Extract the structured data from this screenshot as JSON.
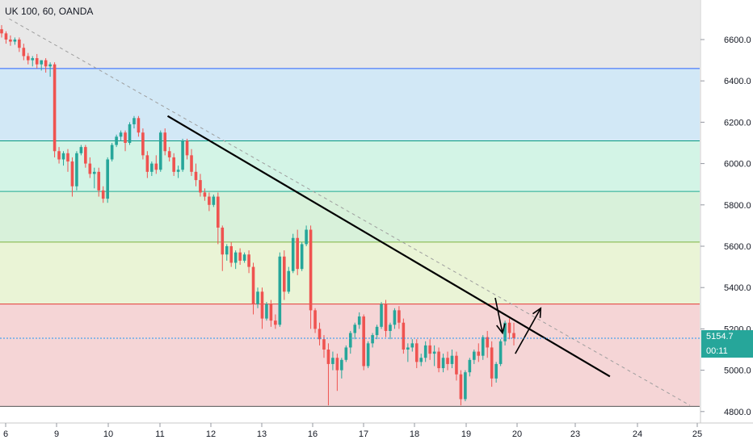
{
  "chart_data": {
    "type": "candlestick",
    "title": "UK 100, 60, OANDA",
    "y_axis": {
      "ticks": [
        "6600.0",
        "6400.0",
        "6200.0",
        "6000.0",
        "5800.0",
        "5600.0",
        "5400.0",
        "5200.0",
        "5000.0",
        "4800.0"
      ],
      "values": [
        6600,
        6400,
        6200,
        6000,
        5800,
        5600,
        5400,
        5200,
        5000,
        4800
      ],
      "ylim": [
        4780,
        6800
      ]
    },
    "x_axis": {
      "ticks": [
        "6",
        "9",
        "10",
        "11",
        "12",
        "13",
        "16",
        "17",
        "18",
        "19",
        "20",
        "23",
        "24",
        "25"
      ]
    },
    "current_price": {
      "value": 5154.7,
      "label": "5154.7",
      "countdown": "00:11"
    },
    "fib_levels": [
      {
        "level": 6460,
        "color": "#2962ff"
      },
      {
        "level": 6110,
        "color": "#089981"
      },
      {
        "level": 5865,
        "color": "#22ab94"
      },
      {
        "level": 5620,
        "color": "#7cb342"
      },
      {
        "level": 5320,
        "color": "#e53935"
      },
      {
        "level": 4825,
        "color": "#555555"
      }
    ],
    "fib_zones": [
      {
        "from": 6800,
        "to": 6460,
        "color": "#e8e8e8"
      },
      {
        "from": 6460,
        "to": 6110,
        "color": "#d2e8f6"
      },
      {
        "from": 6110,
        "to": 5865,
        "color": "#d3f4e6"
      },
      {
        "from": 5865,
        "to": 5620,
        "color": "#d8f1da"
      },
      {
        "from": 5620,
        "to": 5320,
        "color": "#eaf4d6"
      },
      {
        "from": 5320,
        "to": 4825,
        "color": "#f5d5d6"
      }
    ],
    "trendlines": [
      {
        "name": "main-trendline",
        "style": "solid",
        "color": "#000000",
        "from": [
          10.45,
          6230
        ],
        "to": [
          22.6,
          4970
        ]
      },
      {
        "name": "projected-trendline",
        "style": "dashed",
        "color": "#9e9e9e",
        "from": [
          6.1,
          6700
        ],
        "to": [
          24.8,
          4830
        ]
      }
    ],
    "arrows": [
      {
        "name": "retest-arrow",
        "from": [
          19.45,
          5350
        ],
        "to": [
          19.65,
          5180
        ]
      },
      {
        "name": "breakout-arrow",
        "from": [
          20.0,
          5080
        ],
        "to": [
          20.7,
          5300
        ]
      }
    ],
    "candles": [
      {
        "o": 6650,
        "h": 6670,
        "c": 6630,
        "l": 6610
      },
      {
        "o": 6630,
        "h": 6640,
        "c": 6600,
        "l": 6580
      },
      {
        "o": 6600,
        "h": 6620,
        "c": 6590,
        "l": 6570
      },
      {
        "o": 6590,
        "h": 6610,
        "c": 6600,
        "l": 6575
      },
      {
        "o": 6600,
        "h": 6610,
        "c": 6560,
        "l": 6540
      },
      {
        "o": 6560,
        "h": 6580,
        "c": 6520,
        "l": 6500
      },
      {
        "o": 6520,
        "h": 6535,
        "c": 6500,
        "l": 6480
      },
      {
        "o": 6500,
        "h": 6520,
        "c": 6510,
        "l": 6470
      },
      {
        "o": 6510,
        "h": 6530,
        "c": 6480,
        "l": 6460
      },
      {
        "o": 6480,
        "h": 6500,
        "c": 6500,
        "l": 6450
      },
      {
        "o": 6500,
        "h": 6510,
        "c": 6470,
        "l": 6440
      },
      {
        "o": 6470,
        "h": 6490,
        "c": 6480,
        "l": 6420
      },
      {
        "o": 6480,
        "h": 6490,
        "c": 6060,
        "l": 6030
      },
      {
        "o": 6060,
        "h": 6080,
        "c": 6020,
        "l": 6000
      },
      {
        "o": 6020,
        "h": 6060,
        "c": 6050,
        "l": 5990
      },
      {
        "o": 6050,
        "h": 6070,
        "c": 6010,
        "l": 5960
      },
      {
        "o": 6010,
        "h": 6030,
        "c": 5890,
        "l": 5840
      },
      {
        "o": 5890,
        "h": 6060,
        "c": 6050,
        "l": 5870
      },
      {
        "o": 6050,
        "h": 6090,
        "c": 6080,
        "l": 6040
      },
      {
        "o": 6080,
        "h": 6090,
        "c": 6000,
        "l": 5980
      },
      {
        "o": 6000,
        "h": 6030,
        "c": 5950,
        "l": 5930
      },
      {
        "o": 5950,
        "h": 5980,
        "c": 5960,
        "l": 5880
      },
      {
        "o": 5960,
        "h": 5980,
        "c": 5870,
        "l": 5840
      },
      {
        "o": 5870,
        "h": 5890,
        "c": 5830,
        "l": 5810
      },
      {
        "o": 5830,
        "h": 6030,
        "c": 6020,
        "l": 5810
      },
      {
        "o": 6020,
        "h": 6100,
        "c": 6090,
        "l": 6010
      },
      {
        "o": 6090,
        "h": 6140,
        "c": 6130,
        "l": 6080
      },
      {
        "o": 6130,
        "h": 6160,
        "c": 6150,
        "l": 6110
      },
      {
        "o": 6150,
        "h": 6160,
        "c": 6100,
        "l": 6060
      },
      {
        "o": 6100,
        "h": 6200,
        "c": 6190,
        "l": 6090
      },
      {
        "o": 6190,
        "h": 6230,
        "c": 6220,
        "l": 6170
      },
      {
        "o": 6220,
        "h": 6230,
        "c": 6150,
        "l": 6130
      },
      {
        "o": 6150,
        "h": 6170,
        "c": 6040,
        "l": 6020
      },
      {
        "o": 6040,
        "h": 6060,
        "c": 5960,
        "l": 5930
      },
      {
        "o": 5960,
        "h": 6010,
        "c": 6000,
        "l": 5940
      },
      {
        "o": 6000,
        "h": 6040,
        "c": 5970,
        "l": 5950
      },
      {
        "o": 5970,
        "h": 6160,
        "c": 6150,
        "l": 5960
      },
      {
        "o": 6150,
        "h": 6170,
        "c": 6060,
        "l": 6040
      },
      {
        "o": 6060,
        "h": 6080,
        "c": 6030,
        "l": 6010
      },
      {
        "o": 6030,
        "h": 6050,
        "c": 5960,
        "l": 5940
      },
      {
        "o": 5960,
        "h": 5990,
        "c": 5970,
        "l": 5930
      },
      {
        "o": 5970,
        "h": 6120,
        "c": 6110,
        "l": 5960
      },
      {
        "o": 6110,
        "h": 6120,
        "c": 6040,
        "l": 6020
      },
      {
        "o": 6040,
        "h": 6070,
        "c": 5960,
        "l": 5940
      },
      {
        "o": 5960,
        "h": 6000,
        "c": 5920,
        "l": 5890
      },
      {
        "o": 5920,
        "h": 5950,
        "c": 5860,
        "l": 5840
      },
      {
        "o": 5860,
        "h": 5880,
        "c": 5840,
        "l": 5820
      },
      {
        "o": 5840,
        "h": 5860,
        "c": 5800,
        "l": 5770
      },
      {
        "o": 5800,
        "h": 5850,
        "c": 5840,
        "l": 5790
      },
      {
        "o": 5840,
        "h": 5860,
        "c": 5690,
        "l": 5610
      },
      {
        "o": 5690,
        "h": 5700,
        "c": 5560,
        "l": 5480
      },
      {
        "o": 5560,
        "h": 5610,
        "c": 5600,
        "l": 5530
      },
      {
        "o": 5600,
        "h": 5620,
        "c": 5520,
        "l": 5500
      },
      {
        "o": 5520,
        "h": 5580,
        "c": 5570,
        "l": 5490
      },
      {
        "o": 5570,
        "h": 5590,
        "c": 5530,
        "l": 5510
      },
      {
        "o": 5530,
        "h": 5570,
        "c": 5560,
        "l": 5520
      },
      {
        "o": 5560,
        "h": 5580,
        "c": 5500,
        "l": 5470
      },
      {
        "o": 5500,
        "h": 5520,
        "c": 5320,
        "l": 5270
      },
      {
        "o": 5320,
        "h": 5400,
        "c": 5380,
        "l": 5300
      },
      {
        "o": 5380,
        "h": 5400,
        "c": 5250,
        "l": 5200
      },
      {
        "o": 5250,
        "h": 5330,
        "c": 5320,
        "l": 5240
      },
      {
        "o": 5320,
        "h": 5340,
        "c": 5240,
        "l": 5210
      },
      {
        "o": 5240,
        "h": 5270,
        "c": 5220,
        "l": 5200
      },
      {
        "o": 5220,
        "h": 5570,
        "c": 5550,
        "l": 5210
      },
      {
        "o": 5550,
        "h": 5580,
        "c": 5380,
        "l": 5340
      },
      {
        "o": 5380,
        "h": 5500,
        "c": 5480,
        "l": 5370
      },
      {
        "o": 5480,
        "h": 5660,
        "c": 5640,
        "l": 5470
      },
      {
        "o": 5640,
        "h": 5680,
        "c": 5490,
        "l": 5460
      },
      {
        "o": 5490,
        "h": 5620,
        "c": 5610,
        "l": 5480
      },
      {
        "o": 5610,
        "h": 5700,
        "c": 5680,
        "l": 5600
      },
      {
        "o": 5680,
        "h": 5700,
        "c": 5290,
        "l": 5200
      },
      {
        "o": 5290,
        "h": 5300,
        "c": 5200,
        "l": 5180
      },
      {
        "o": 5200,
        "h": 5230,
        "c": 5150,
        "l": 5120
      },
      {
        "o": 5150,
        "h": 5170,
        "c": 5100,
        "l": 5060
      },
      {
        "o": 5100,
        "h": 5130,
        "c": 5030,
        "l": 4830
      },
      {
        "o": 5030,
        "h": 5090,
        "c": 5060,
        "l": 5000
      },
      {
        "o": 5060,
        "h": 5080,
        "c": 5000,
        "l": 4900
      },
      {
        "o": 5000,
        "h": 5060,
        "c": 5050,
        "l": 4960
      },
      {
        "o": 5050,
        "h": 5120,
        "c": 5110,
        "l": 5040
      },
      {
        "o": 5110,
        "h": 5190,
        "c": 5180,
        "l": 5080
      },
      {
        "o": 5180,
        "h": 5230,
        "c": 5220,
        "l": 5150
      },
      {
        "o": 5220,
        "h": 5280,
        "c": 5260,
        "l": 5200
      },
      {
        "o": 5260,
        "h": 5270,
        "c": 5020,
        "l": 5000
      },
      {
        "o": 5020,
        "h": 5140,
        "c": 5130,
        "l": 5010
      },
      {
        "o": 5130,
        "h": 5180,
        "c": 5170,
        "l": 5110
      },
      {
        "o": 5170,
        "h": 5220,
        "c": 5210,
        "l": 5150
      },
      {
        "o": 5210,
        "h": 5330,
        "c": 5320,
        "l": 5200
      },
      {
        "o": 5320,
        "h": 5340,
        "c": 5190,
        "l": 5160
      },
      {
        "o": 5190,
        "h": 5230,
        "c": 5220,
        "l": 5150
      },
      {
        "o": 5220,
        "h": 5300,
        "c": 5290,
        "l": 5200
      },
      {
        "o": 5290,
        "h": 5310,
        "c": 5230,
        "l": 5200
      },
      {
        "o": 5230,
        "h": 5250,
        "c": 5100,
        "l": 5080
      },
      {
        "o": 5100,
        "h": 5130,
        "c": 5110,
        "l": 5040
      },
      {
        "o": 5110,
        "h": 5150,
        "c": 5130,
        "l": 5090
      },
      {
        "o": 5130,
        "h": 5150,
        "c": 5040,
        "l": 5010
      },
      {
        "o": 5040,
        "h": 5080,
        "c": 5060,
        "l": 5020
      },
      {
        "o": 5060,
        "h": 5140,
        "c": 5120,
        "l": 5040
      },
      {
        "o": 5120,
        "h": 5150,
        "c": 5080,
        "l": 5050
      },
      {
        "o": 5080,
        "h": 5120,
        "c": 5090,
        "l": 5020
      },
      {
        "o": 5090,
        "h": 5110,
        "c": 5010,
        "l": 4990
      },
      {
        "o": 5010,
        "h": 5080,
        "c": 5060,
        "l": 4990
      },
      {
        "o": 5060,
        "h": 5090,
        "c": 5030,
        "l": 5000
      },
      {
        "o": 5030,
        "h": 5100,
        "c": 5070,
        "l": 5010
      },
      {
        "o": 5070,
        "h": 5090,
        "c": 4980,
        "l": 4950
      },
      {
        "o": 4980,
        "h": 5000,
        "c": 4860,
        "l": 4830
      },
      {
        "o": 4860,
        "h": 5000,
        "c": 4990,
        "l": 4850
      },
      {
        "o": 4990,
        "h": 5060,
        "c": 5050,
        "l": 4970
      },
      {
        "o": 5050,
        "h": 5100,
        "c": 5090,
        "l": 5030
      },
      {
        "o": 5090,
        "h": 5130,
        "c": 5070,
        "l": 5040
      },
      {
        "o": 5070,
        "h": 5170,
        "c": 5160,
        "l": 5050
      },
      {
        "o": 5160,
        "h": 5190,
        "c": 5110,
        "l": 5060
      },
      {
        "o": 5110,
        "h": 5140,
        "c": 4960,
        "l": 4920
      },
      {
        "o": 4960,
        "h": 5040,
        "c": 5030,
        "l": 4940
      },
      {
        "o": 5030,
        "h": 5150,
        "c": 5140,
        "l": 5020
      },
      {
        "o": 5140,
        "h": 5240,
        "c": 5230,
        "l": 5120
      },
      {
        "o": 5230,
        "h": 5250,
        "c": 5180,
        "l": 5150
      },
      {
        "o": 5180,
        "h": 5230,
        "c": 5155,
        "l": 5120
      }
    ]
  }
}
